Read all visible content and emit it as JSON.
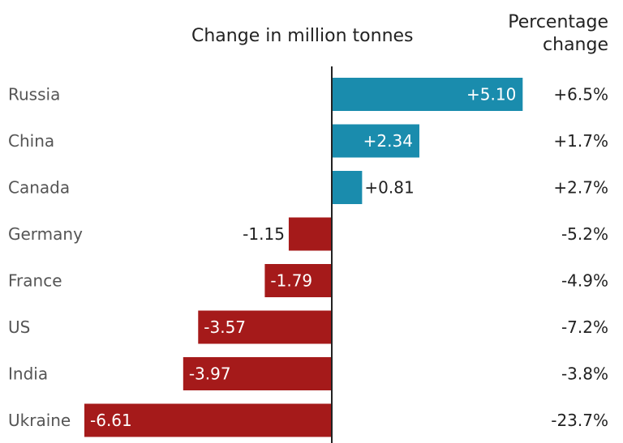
{
  "header": {
    "value_title": "Change in million tonnes",
    "pct_title_line1": "Percentage",
    "pct_title_line2": "change"
  },
  "colors": {
    "positive": "#1a8cad",
    "negative": "#a51a1a",
    "axis": "#222222",
    "label": "#555555",
    "value_outside": "#222222",
    "value_inside": "#ffffff"
  },
  "chart_data": {
    "type": "bar",
    "orientation": "horizontal",
    "categories": [
      "Russia",
      "China",
      "Canada",
      "Germany",
      "France",
      "US",
      "India",
      "Ukraine"
    ],
    "values": [
      5.1,
      2.34,
      0.81,
      -1.15,
      -1.79,
      -3.57,
      -3.97,
      -6.61
    ],
    "value_labels": [
      "+5.10",
      "+2.34",
      "+0.81",
      "-1.15",
      "-1.79",
      "-3.57",
      "-3.97",
      "-6.61"
    ],
    "percentage_change": [
      "+6.5%",
      "+1.7%",
      "+2.7%",
      "-5.2%",
      "-4.9%",
      "-7.2%",
      "-3.8%",
      "-23.7%"
    ],
    "xlim": [
      -6.61,
      5.1
    ],
    "grid": false,
    "legend": "none"
  }
}
